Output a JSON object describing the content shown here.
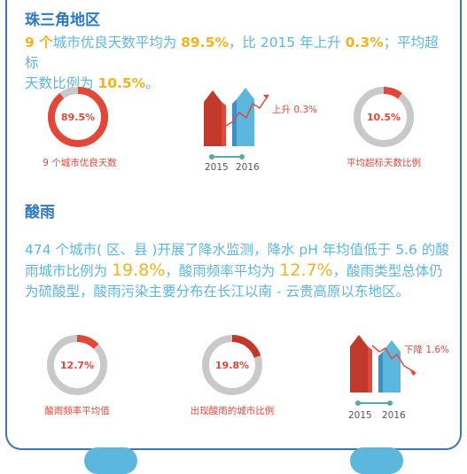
{
  "prd": {
    "title": "珠三角地区",
    "p1": "9 个",
    "p2": "城市优良天数平均为 ",
    "p3": "89.5%",
    "p4": "，比 2015 年上升 ",
    "p5": "0.3%",
    "p6": "；平均超标",
    "p7": "天数比例为 ",
    "p8": "10.5%",
    "p9": "。",
    "donut1": {
      "value": "89.5%",
      "fraction": 0.895,
      "caption": "9 个城市优良天数"
    },
    "donut2": {
      "value": "10.5%",
      "fraction": 0.105,
      "caption": "平均超标天数比例"
    },
    "trend": {
      "label": "上升 0.3%",
      "year_a": "2015",
      "year_b": "2016"
    }
  },
  "acid": {
    "title": "酸雨",
    "t1": "474 个城市( 区、县 )开展了降水监测，降水 pH 年均值低于 5.6 的酸",
    "t2": "雨城市比例为 ",
    "t3": "19.8%",
    "t4": "，酸雨频率平均为 ",
    "t5": "12.7%",
    "t6": "，酸雨类型总体仍",
    "t7": "为硫酸型，酸雨污染主要分布在长江以南 - 云贵高原以东地区。",
    "donut1": {
      "value": "12.7%",
      "fraction": 0.127,
      "caption": "酸雨频率平均值"
    },
    "donut2": {
      "value": "19.8%",
      "fraction": 0.198,
      "caption": "出现酸雨的城市比例"
    },
    "trend": {
      "label": "下降 1.6%",
      "year_a": "2015",
      "year_b": "2016"
    }
  },
  "colors": {
    "blue": "#5cb7de",
    "red": "#e2483a",
    "dark_red": "#c0392b",
    "gray": "#c9c9c9",
    "yellow": "#f3b21e",
    "title_blue": "#2b78c4"
  }
}
